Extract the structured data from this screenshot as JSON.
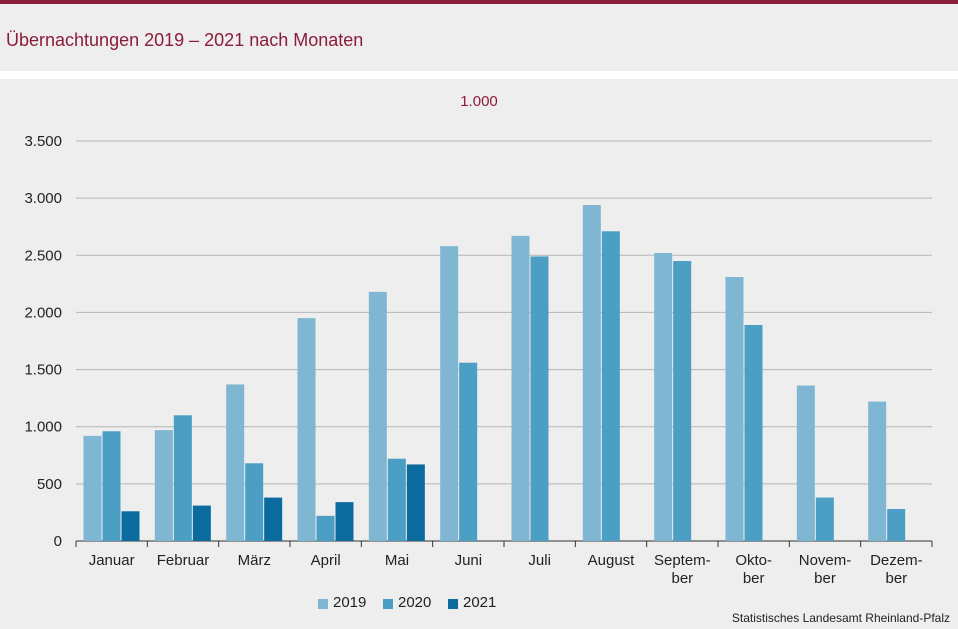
{
  "header": {
    "title": "Übernachtungen 2019 – 2021 nach Monaten"
  },
  "chart_data": {
    "type": "bar",
    "unit_label": "1.000",
    "categories": [
      [
        "Januar"
      ],
      [
        "Februar"
      ],
      [
        "März"
      ],
      [
        "April"
      ],
      [
        "Mai"
      ],
      [
        "Juni"
      ],
      [
        "Juli"
      ],
      [
        "August"
      ],
      [
        "Septem-",
        "ber"
      ],
      [
        "Okto-",
        "ber"
      ],
      [
        "Novem-",
        "ber"
      ],
      [
        "Dezem-",
        "ber"
      ]
    ],
    "series": [
      {
        "name": "2019",
        "color": "#7fb7d2",
        "values": [
          920,
          970,
          1370,
          1950,
          2180,
          2580,
          2670,
          2940,
          2520,
          2310,
          1360,
          1220
        ]
      },
      {
        "name": "2020",
        "color": "#4c9fc4",
        "values": [
          960,
          1100,
          680,
          220,
          720,
          1560,
          2490,
          2710,
          2450,
          1890,
          380,
          280
        ]
      },
      {
        "name": "2021",
        "color": "#0b6a9e",
        "values": [
          260,
          310,
          380,
          340,
          670,
          null,
          null,
          null,
          null,
          null,
          null,
          null
        ]
      }
    ],
    "ylim": [
      0,
      3500
    ],
    "yticks": [
      0,
      500,
      1000,
      1500,
      2000,
      2500,
      3000,
      3500
    ],
    "ytick_labels": [
      "0",
      "500",
      "1.000",
      "1.500",
      "2.000",
      "2.500",
      "3.000",
      "3.500"
    ],
    "grid": true,
    "legend_position": "bottom"
  },
  "source": "Statistisches Landesamt  Rheinland-Pfalz"
}
